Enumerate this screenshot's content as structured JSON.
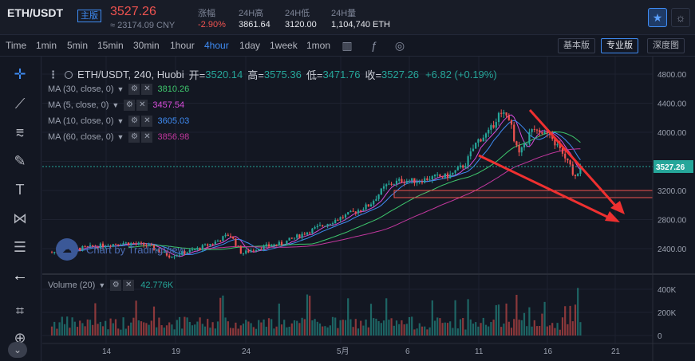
{
  "header": {
    "pair": "ETH/USDT",
    "badge": "主版",
    "price": "3527.26",
    "cny_price": "≈ 23174.09 CNY",
    "stats": [
      {
        "label": "涨幅",
        "value": "-2.90%",
        "negative": true
      },
      {
        "label": "24H高",
        "value": "3861.64",
        "negative": false
      },
      {
        "label": "24H低",
        "value": "3120.00",
        "negative": false
      },
      {
        "label": "24H量",
        "value": "1,104,740 ETH",
        "negative": false
      }
    ],
    "star_icon": "star-icon",
    "theme_icon": "sun-icon"
  },
  "toolbar": {
    "intervals": [
      "Time",
      "1min",
      "5min",
      "15min",
      "30min",
      "1hour",
      "4hour",
      "1day",
      "1week",
      "1mon"
    ],
    "active_interval": "4hour",
    "modes": [
      "基本版",
      "专业版",
      "深度图"
    ],
    "active_mode": "专业版"
  },
  "chart": {
    "title": "ETH/USDT, 240, Huobi",
    "open_label": "开=",
    "open": "3520.14",
    "high_label": "高=",
    "high": "3575.36",
    "low_label": "低=",
    "low": "3471.76",
    "close_label": "收=",
    "close": "3527.26",
    "change": "+6.82 (+0.19%)",
    "indicators": [
      {
        "label": "MA (30, close, 0)",
        "value": "3810.26",
        "color": "#3ec76d"
      },
      {
        "label": "MA (5, close, 0)",
        "value": "3457.54",
        "color": "#d64bd8"
      },
      {
        "label": "MA (10, close, 0)",
        "value": "3605.03",
        "color": "#3f8cf4"
      },
      {
        "label": "MA (60, close, 0)",
        "value": "3856.98",
        "color": "#c2379e"
      }
    ],
    "watermark": "Chart by TradingView",
    "price_axis": [
      "4800.00",
      "4400.00",
      "4000.00",
      "3527.26",
      "3200.00",
      "2800.00",
      "2400.00"
    ],
    "current_price_tag": "3527.26",
    "volume_label": "Volume (20)",
    "volume_value": "42.776K",
    "volume_axis": [
      "400K",
      "200K",
      "0"
    ],
    "time_axis": [
      "14",
      "19",
      "24",
      "5月",
      "6",
      "11",
      "16",
      "21"
    ]
  }
}
